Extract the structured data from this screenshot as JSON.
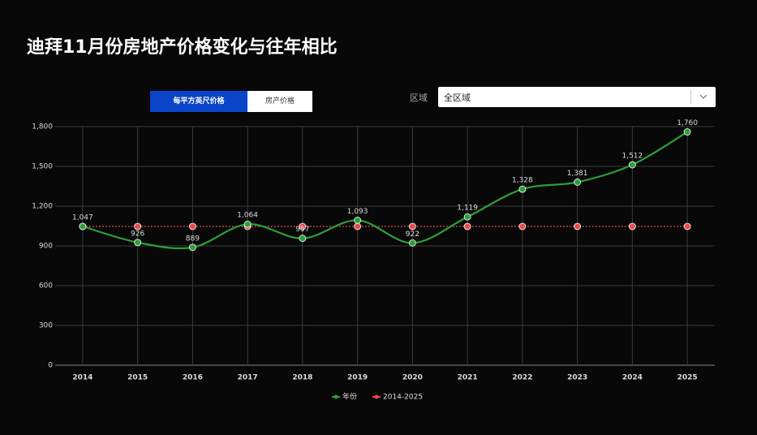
{
  "header": {
    "title": "迪拜11月份房地产价格变化与往年相比"
  },
  "controls": {
    "tabs": [
      "每平方英尺价格",
      "房产价格"
    ],
    "region_label": "区域",
    "region_value": "全区域"
  },
  "chart_data": {
    "type": "line",
    "categories": [
      "2014",
      "2015",
      "2016",
      "2017",
      "2018",
      "2019",
      "2020",
      "2021",
      "2022",
      "2023",
      "2024",
      "2025"
    ],
    "series": [
      {
        "name": "年份",
        "color": "#2e9e3a",
        "values": [
          1047,
          926,
          889,
          1064,
          957,
          1093,
          922,
          1119,
          1328,
          1381,
          1512,
          1760
        ],
        "value_labels": [
          "1,047",
          "926",
          "889",
          "1,064",
          "957",
          "1,093",
          "922",
          "1,119",
          "1,328",
          "1,381",
          "1,512",
          "1,760"
        ]
      },
      {
        "name": "2014-2025",
        "color": "#e84a4a",
        "values": [
          1047,
          1047,
          1047,
          1047,
          1047,
          1047,
          1047,
          1047,
          1047,
          1047,
          1047,
          1047
        ]
      }
    ],
    "ylim": [
      0,
      1800
    ],
    "yticks": [
      0,
      300,
      600,
      900,
      {
        "value": 1200,
        "label": "1,200"
      },
      {
        "value": 1500,
        "label": "1,500"
      },
      {
        "value": 1800,
        "label": "1,800"
      }
    ],
    "grid": true
  }
}
